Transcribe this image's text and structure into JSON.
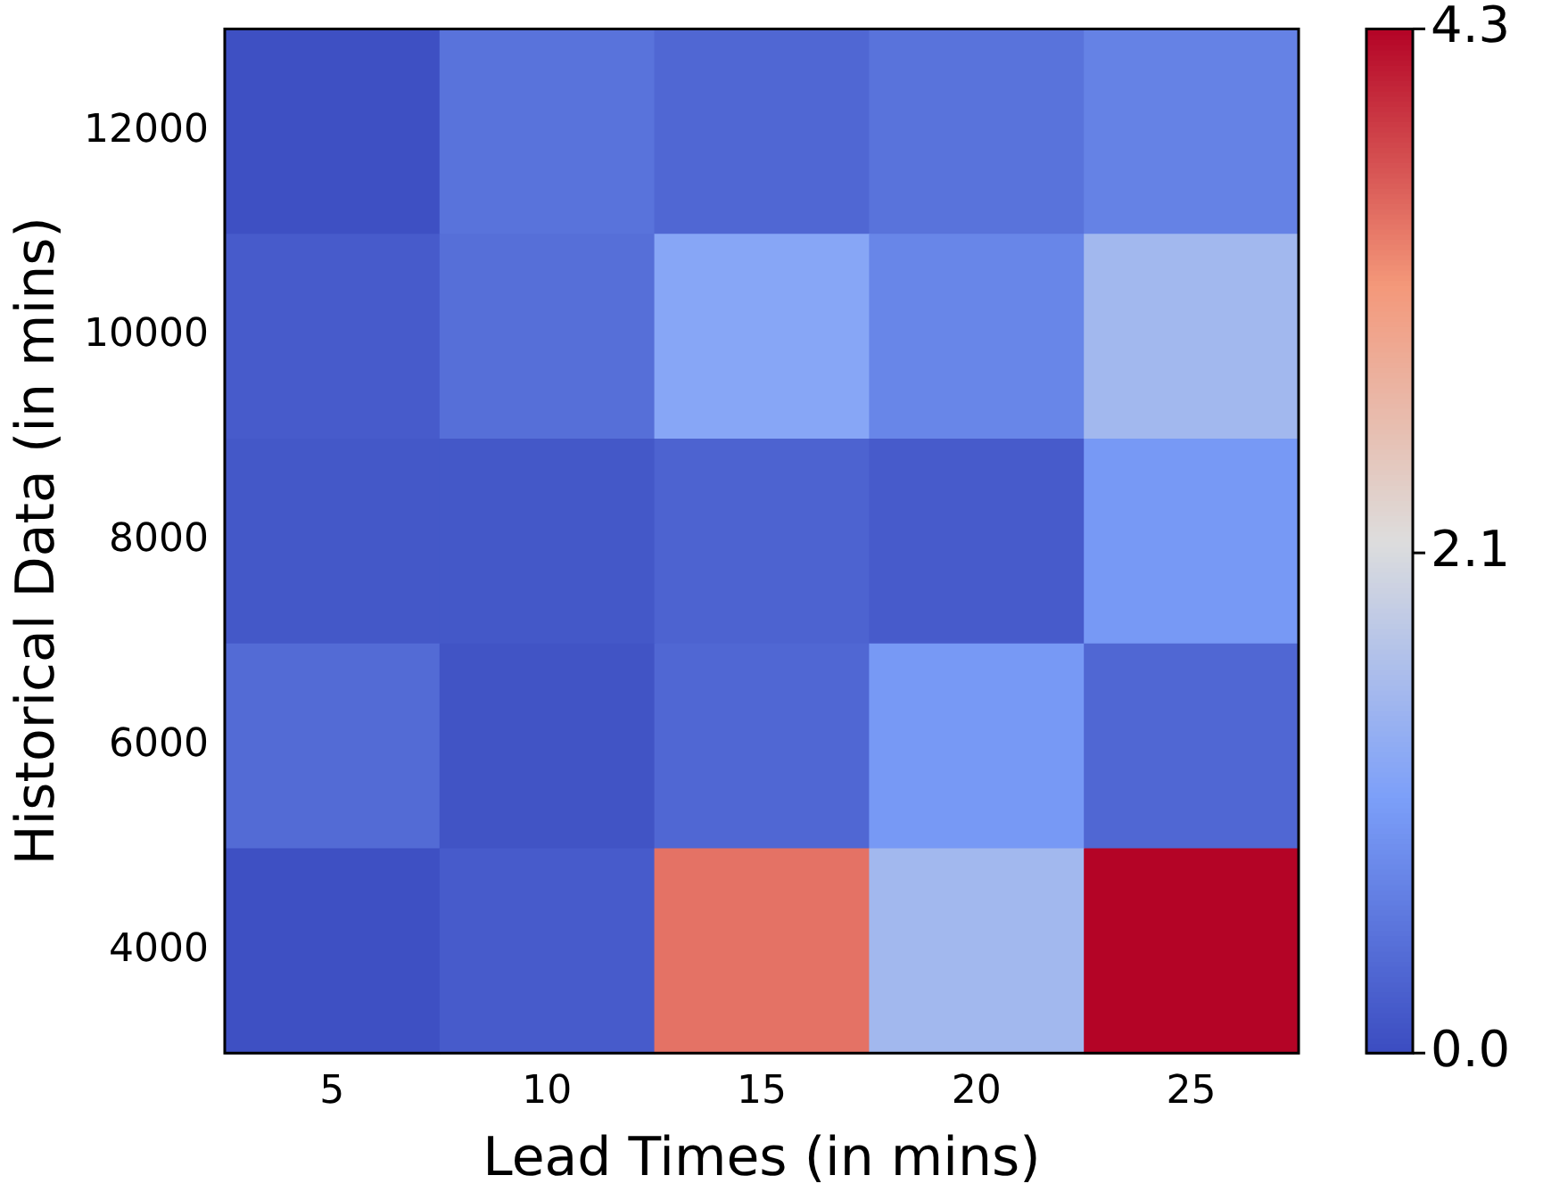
{
  "chart_data": {
    "type": "heatmap",
    "xlabel": "Lead Times (in mins)",
    "ylabel": "Historical Data (in mins)",
    "categories": [
      "5",
      "10",
      "15",
      "20",
      "25"
    ],
    "y_categories": [
      "12000",
      "10000",
      "8000",
      "6000",
      "4000"
    ],
    "cells": [
      [
        0.05,
        0.5,
        0.35,
        0.5,
        0.7
      ],
      [
        0.2,
        0.45,
        1.2,
        0.75,
        1.5
      ],
      [
        0.15,
        0.15,
        0.3,
        0.2,
        1.0
      ],
      [
        0.4,
        0.1,
        0.35,
        1.0,
        0.35
      ],
      [
        0.05,
        0.2,
        3.5,
        1.5,
        4.3
      ]
    ],
    "clim": [
      0,
      4.3
    ],
    "cticks": [
      {
        "value": 0,
        "label": "0.0"
      },
      2.1,
      4.3
    ],
    "grid": false
  }
}
